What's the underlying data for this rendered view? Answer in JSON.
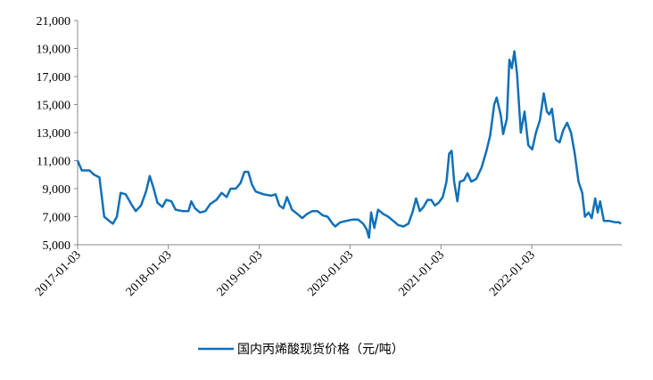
{
  "chart_data": {
    "type": "line",
    "x": [
      "2017-01-03",
      "2017-01-20",
      "2017-02-20",
      "2017-03-10",
      "2017-04-01",
      "2017-04-20",
      "2017-05-10",
      "2017-05-25",
      "2017-06-10",
      "2017-06-25",
      "2017-07-15",
      "2017-08-10",
      "2017-08-25",
      "2017-09-15",
      "2017-10-05",
      "2017-10-20",
      "2017-11-05",
      "2017-11-20",
      "2017-12-10",
      "2017-12-25",
      "2018-01-15",
      "2018-02-01",
      "2018-03-01",
      "2018-03-25",
      "2018-04-05",
      "2018-04-20",
      "2018-05-10",
      "2018-06-01",
      "2018-06-20",
      "2018-07-15",
      "2018-08-05",
      "2018-08-25",
      "2018-09-10",
      "2018-10-01",
      "2018-10-20",
      "2018-11-05",
      "2018-11-20",
      "2018-12-05",
      "2018-12-20",
      "2019-01-20",
      "2019-02-20",
      "2019-03-10",
      "2019-03-25",
      "2019-04-10",
      "2019-04-25",
      "2019-05-15",
      "2019-06-05",
      "2019-06-25",
      "2019-07-15",
      "2019-08-05",
      "2019-08-25",
      "2019-09-15",
      "2019-10-05",
      "2019-10-25",
      "2019-11-05",
      "2019-11-25",
      "2019-12-20",
      "2020-01-15",
      "2020-02-05",
      "2020-02-25",
      "2020-03-10",
      "2020-03-20",
      "2020-03-28",
      "2020-04-10",
      "2020-04-25",
      "2020-05-15",
      "2020-06-05",
      "2020-06-25",
      "2020-07-15",
      "2020-08-05",
      "2020-08-25",
      "2020-09-10",
      "2020-09-25",
      "2020-10-10",
      "2020-10-25",
      "2020-11-10",
      "2020-11-25",
      "2020-12-10",
      "2020-12-25",
      "2021-01-10",
      "2021-01-25",
      "2021-02-05",
      "2021-02-15",
      "2021-02-25",
      "2021-03-10",
      "2021-03-20",
      "2021-04-05",
      "2021-04-20",
      "2021-05-05",
      "2021-05-25",
      "2021-06-15",
      "2021-07-05",
      "2021-07-20",
      "2021-08-05",
      "2021-08-15",
      "2021-09-01",
      "2021-09-10",
      "2021-09-25",
      "2021-10-05",
      "2021-10-15",
      "2021-10-25",
      "2021-11-05",
      "2021-11-20",
      "2021-12-05",
      "2021-12-20",
      "2022-01-05",
      "2022-01-20",
      "2022-02-05",
      "2022-02-20",
      "2022-03-05",
      "2022-03-15",
      "2022-03-25",
      "2022-04-10",
      "2022-04-25",
      "2022-05-10",
      "2022-05-25",
      "2022-06-10",
      "2022-06-25",
      "2022-07-10",
      "2022-07-25",
      "2022-08-05",
      "2022-08-20",
      "2022-09-01",
      "2022-09-15",
      "2022-09-25",
      "2022-10-05",
      "2022-10-20",
      "2022-11-10",
      "2022-12-05",
      "2022-12-20",
      "2022-12-28"
    ],
    "series": [
      {
        "name": "国内丙烯酸现货价格（元/吨）",
        "color": "#1170b8",
        "values": [
          11000,
          10300,
          10300,
          10000,
          9800,
          7000,
          6700,
          6500,
          7000,
          8700,
          8600,
          7800,
          7400,
          7800,
          8800,
          9900,
          9000,
          8000,
          7700,
          8200,
          8100,
          7500,
          7400,
          7400,
          8100,
          7600,
          7300,
          7400,
          7900,
          8200,
          8700,
          8400,
          9000,
          9000,
          9400,
          10200,
          10200,
          9300,
          8800,
          8600,
          8500,
          8600,
          7800,
          7600,
          8400,
          7500,
          7200,
          6900,
          7200,
          7400,
          7400,
          7100,
          7000,
          6500,
          6300,
          6600,
          6700,
          6800,
          6800,
          6500,
          6100,
          5500,
          7300,
          6200,
          7500,
          7200,
          7000,
          6700,
          6400,
          6300,
          6500,
          7300,
          8300,
          7400,
          7700,
          8200,
          8200,
          7800,
          8000,
          8400,
          9500,
          11500,
          11700,
          9500,
          8100,
          9500,
          9600,
          10100,
          9500,
          9700,
          10500,
          11700,
          12800,
          15000,
          15500,
          14200,
          12900,
          14000,
          18200,
          17600,
          18800,
          17200,
          13000,
          14500,
          12100,
          11800,
          13000,
          13900,
          15800,
          14500,
          14300,
          14700,
          12500,
          12300,
          13200,
          13700,
          13000,
          11500,
          9500,
          8700,
          7000,
          7300,
          6900,
          8300,
          7300,
          8100,
          6700,
          6700,
          6600,
          6600,
          6500
        ]
      }
    ],
    "xlim": [
      "2017-01-03",
      "2022-12-31"
    ],
    "xticks": [
      "2017-01-03",
      "2018-01-03",
      "2019-01-03",
      "2020-01-03",
      "2021-01-03",
      "2022-01-03"
    ],
    "ylim": [
      5000,
      21000
    ],
    "yticks": [
      {
        "value": 5000,
        "label": "5,000"
      },
      {
        "value": 7000,
        "label": "7,000"
      },
      {
        "value": 9000,
        "label": "9,000"
      },
      {
        "value": 11000,
        "label": "11,000"
      },
      {
        "value": 13000,
        "label": "13,000"
      },
      {
        "value": 15000,
        "label": "15,000"
      },
      {
        "value": 17000,
        "label": "17,000"
      },
      {
        "value": 19000,
        "label": "19,000"
      },
      {
        "value": 21000,
        "label": "21,000"
      }
    ],
    "grid": false,
    "legend": "bottom"
  }
}
